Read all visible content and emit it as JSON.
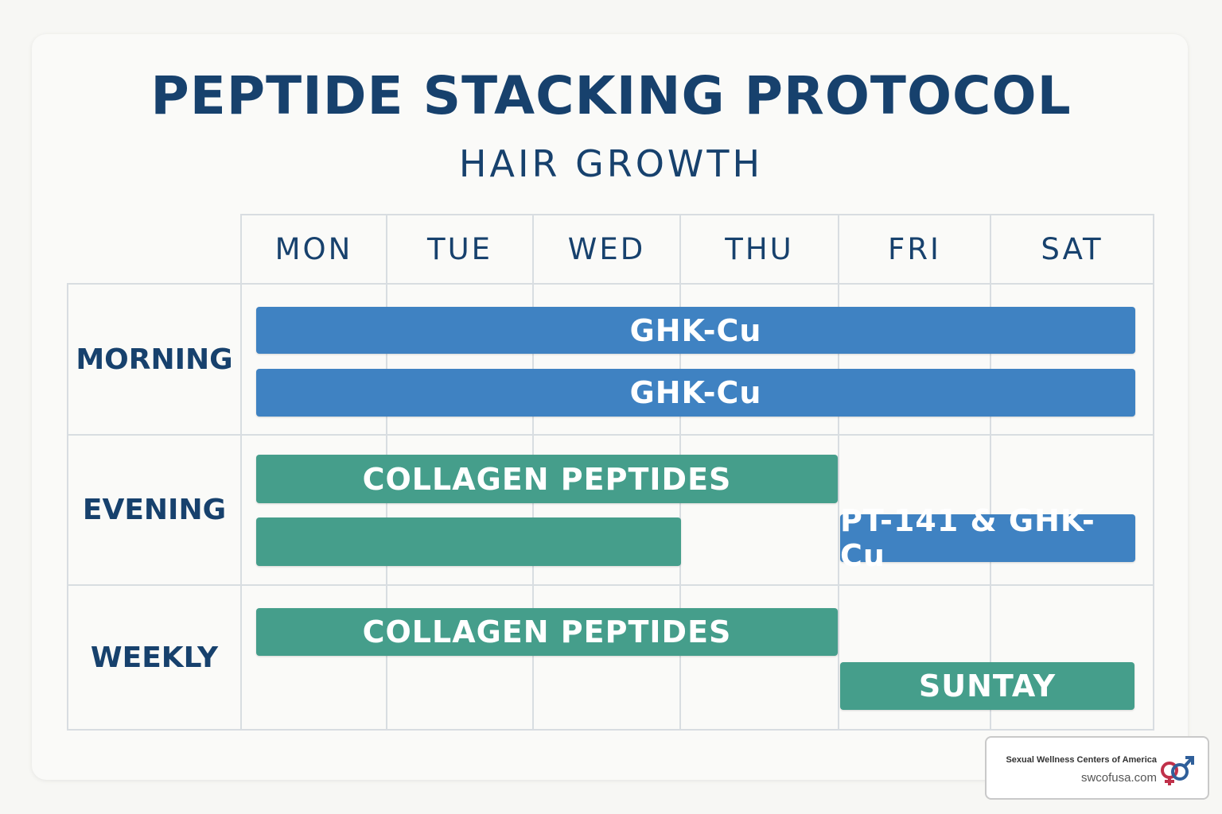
{
  "title": "PEPTIDE STACKING PROTOCOL",
  "subtitle": "HAIR GROWTH",
  "days": [
    "MON",
    "TUE",
    "WED",
    "THU",
    "FRI",
    "SAT"
  ],
  "rows": [
    "MORNING",
    "EVENING",
    "WEEKLY"
  ],
  "bars": {
    "morning_1": "GHK-Cu",
    "morning_2": "GHK-Cu",
    "evening_1": "COLLAGEN PEPTIDES",
    "evening_2": "",
    "evening_3": "PT-141 & GHK-Cu",
    "weekly_1": "COLLAGEN PEPTIDES",
    "weekly_2": "SUNTAY"
  },
  "colors": {
    "heading": "#17416d",
    "blue_bar": "#3f82c2",
    "green_bar": "#459e8b"
  },
  "badge": {
    "name": "Sexual Wellness Centers of America",
    "url": "swcofusa.com",
    "logo_icon": "gender-symbols-icon"
  }
}
